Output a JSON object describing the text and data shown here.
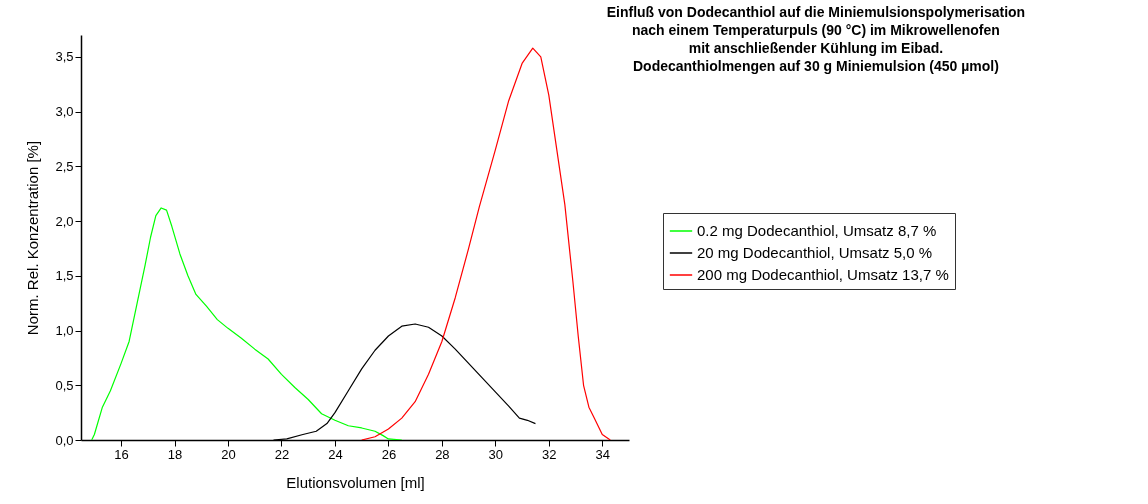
{
  "chart_data": {
    "type": "line",
    "title": [
      "Einfluß von Dodecanthiol auf die Miniemulsionspolymerisation",
      "nach einem Temperaturpuls (90 °C) im Mikrowellenofen",
      " mit  anschließender Kühlung im Eibad.",
      "Dodecanthiolmengen auf  30 g Miniemulsion (450 µmol)"
    ],
    "xlabel": "Elutionsvolumen [ml]",
    "ylabel": "Norm. Rel. Konzentration [%]",
    "xlim": [
      14.5,
      35
    ],
    "ylim": [
      0,
      3.7
    ],
    "xticks": [
      16,
      18,
      20,
      22,
      24,
      26,
      28,
      30,
      32,
      34
    ],
    "yticks": [
      {
        "value": 0,
        "label": "0,0"
      },
      {
        "value": 0.5,
        "label": "0,5"
      },
      {
        "value": 1,
        "label": "1,0"
      },
      {
        "value": 1.5,
        "label": "1,5"
      },
      {
        "value": 2,
        "label": "2,0"
      },
      {
        "value": 2.5,
        "label": "2,5"
      },
      {
        "value": 3,
        "label": "3,0"
      },
      {
        "value": 3.5,
        "label": "3,5"
      }
    ],
    "grid": false,
    "legend": "right",
    "marker": "none",
    "line_style": "solid",
    "series": [
      {
        "name": "0.2  mg Dodecanthiol, Umsatz   8,7 %",
        "color": "#00ff00",
        "x": [
          14.9,
          15.0,
          15.3,
          15.6,
          16.0,
          16.3,
          16.6,
          16.9,
          17.1,
          17.3,
          17.5,
          17.7,
          17.9,
          18.2,
          18.5,
          18.8,
          19.2,
          19.6,
          20.0,
          20.5,
          21.0,
          21.5,
          22.0,
          22.5,
          23.0,
          23.5,
          24.0,
          24.5,
          25.0,
          25.5,
          25.8,
          26.0,
          26.5
        ],
        "values": [
          0,
          0.05,
          0.3,
          0.45,
          0.7,
          0.9,
          1.25,
          1.6,
          1.85,
          2.05,
          2.12,
          2.1,
          1.95,
          1.7,
          1.5,
          1.33,
          1.22,
          1.1,
          1.02,
          0.93,
          0.83,
          0.74,
          0.6,
          0.48,
          0.37,
          0.24,
          0.18,
          0.13,
          0.11,
          0.08,
          0.04,
          0.01,
          0
        ]
      },
      {
        "name": "20   mg Dodecanthiol, Umsatz   5,0 %",
        "color": "#000000",
        "x": [
          21.7,
          22.2,
          22.8,
          23.3,
          23.7,
          24.0,
          24.5,
          25.0,
          25.5,
          26.0,
          26.5,
          27.0,
          27.5,
          28.0,
          28.5,
          29.0,
          29.5,
          30.0,
          30.5,
          30.9,
          31.2,
          31.5
        ],
        "values": [
          0,
          0.01,
          0.05,
          0.08,
          0.15,
          0.25,
          0.45,
          0.65,
          0.82,
          0.95,
          1.04,
          1.06,
          1.03,
          0.95,
          0.83,
          0.7,
          0.57,
          0.44,
          0.31,
          0.2,
          0.18,
          0.15
        ]
      },
      {
        "name": "200 mg Dodecanthiol, Umsatz 13,7 %",
        "color": "#ff0000",
        "x": [
          25.0,
          25.5,
          26.0,
          26.5,
          27.0,
          27.5,
          28.0,
          28.5,
          29.0,
          29.4,
          30.0,
          30.5,
          31.0,
          31.4,
          31.7,
          32.0,
          32.3,
          32.6,
          32.9,
          33.1,
          33.3,
          33.5,
          33.7,
          34.0,
          34.3
        ],
        "values": [
          0,
          0.03,
          0.1,
          0.2,
          0.35,
          0.6,
          0.9,
          1.3,
          1.75,
          2.13,
          2.65,
          3.1,
          3.44,
          3.58,
          3.5,
          3.15,
          2.65,
          2.15,
          1.45,
          0.95,
          0.5,
          0.3,
          0.2,
          0.05,
          0
        ]
      }
    ]
  }
}
